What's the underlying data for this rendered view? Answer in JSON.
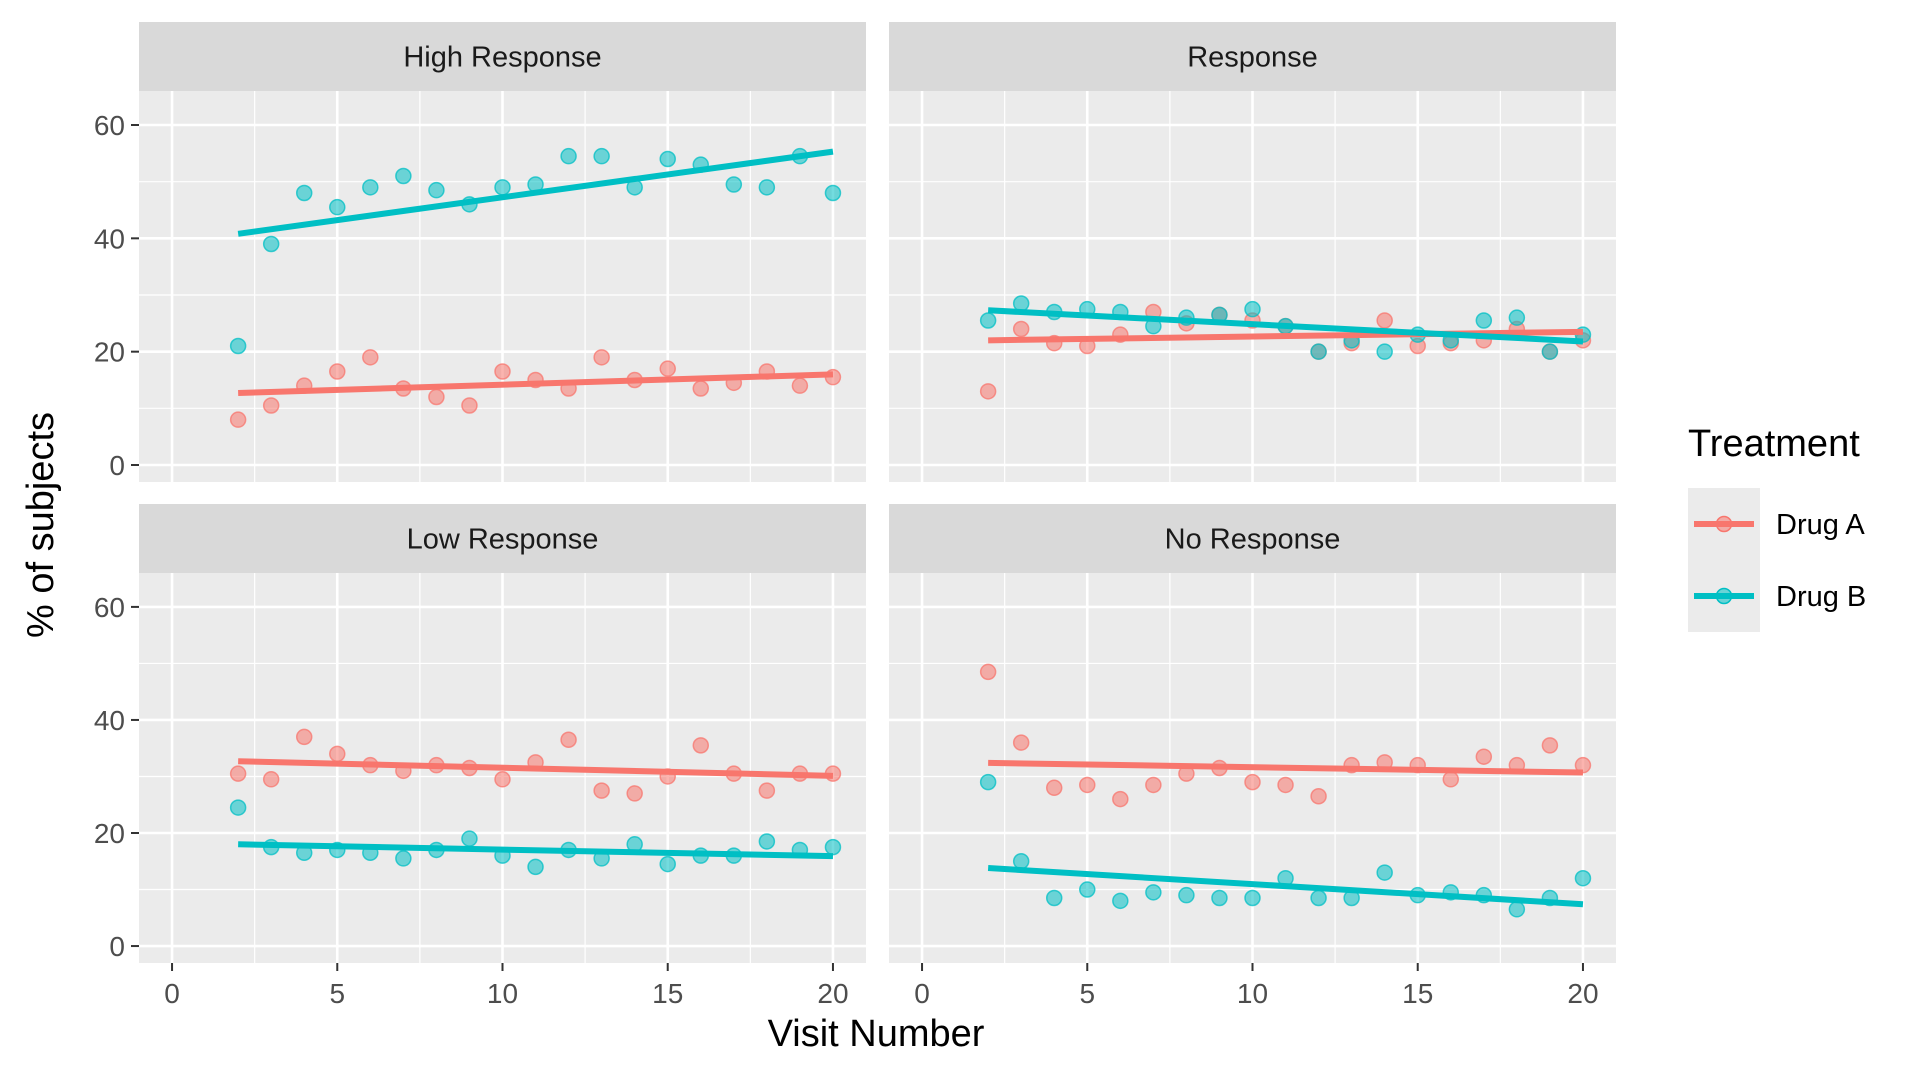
{
  "chart_data": {
    "type": "scatter",
    "subtype": "faceted scatter with linear trend lines",
    "xlabel": "Visit Number",
    "ylabel": "% of subjects",
    "xlim": [
      -1,
      21
    ],
    "ylim": [
      -3,
      66
    ],
    "x_ticks": [
      0,
      5,
      10,
      15,
      20
    ],
    "y_ticks": [
      0,
      20,
      40,
      60
    ],
    "grid": true,
    "legend": {
      "title": "Treatment",
      "position": "right",
      "entries": [
        {
          "name": "Drug A",
          "color": "#F8766D"
        },
        {
          "name": "Drug B",
          "color": "#00BFC4"
        }
      ]
    },
    "panels": [
      {
        "title": "High Response",
        "series": [
          {
            "name": "Drug A",
            "color": "#F8766D",
            "x": [
              2,
              3,
              4,
              5,
              6,
              7,
              8,
              9,
              10,
              11,
              12,
              13,
              14,
              15,
              16,
              17,
              18,
              19,
              20
            ],
            "y": [
              8,
              10.5,
              14,
              16.5,
              19,
              13.5,
              12,
              10.5,
              16.5,
              15,
              13.5,
              19,
              15,
              17,
              13.5,
              14.5,
              16.5,
              14,
              15.5
            ],
            "trend": [
              12.7,
              16.0
            ]
          },
          {
            "name": "Drug B",
            "color": "#00BFC4",
            "x": [
              2,
              3,
              4,
              5,
              6,
              7,
              8,
              9,
              10,
              11,
              12,
              13,
              14,
              15,
              16,
              17,
              18,
              19,
              20
            ],
            "y": [
              21,
              39,
              48,
              45.5,
              49,
              51,
              48.5,
              46,
              49,
              49.5,
              54.5,
              54.5,
              49,
              54,
              53,
              49.5,
              49,
              54.5,
              48
            ],
            "trend": [
              40.8,
              55.3
            ]
          }
        ]
      },
      {
        "title": "Response",
        "series": [
          {
            "name": "Drug A",
            "color": "#F8766D",
            "x": [
              2,
              3,
              4,
              5,
              6,
              7,
              8,
              9,
              10,
              11,
              12,
              13,
              14,
              15,
              16,
              17,
              18,
              19,
              20
            ],
            "y": [
              13,
              24,
              21.5,
              21,
              23,
              27,
              25,
              26.5,
              25.5,
              24.5,
              20,
              21.5,
              25.5,
              21,
              21.5,
              22,
              24,
              20,
              22
            ],
            "trend": [
              22.0,
              23.5
            ]
          },
          {
            "name": "Drug B",
            "color": "#00BFC4",
            "x": [
              2,
              3,
              4,
              5,
              6,
              7,
              8,
              9,
              10,
              11,
              12,
              13,
              14,
              15,
              16,
              17,
              18,
              19,
              20
            ],
            "y": [
              25.5,
              28.5,
              27,
              27.5,
              27,
              24.5,
              26,
              26.5,
              27.5,
              24.5,
              20,
              22,
              20,
              23,
              22,
              25.5,
              26,
              20,
              23
            ],
            "trend": [
              27.3,
              21.8
            ]
          }
        ]
      },
      {
        "title": "Low Response",
        "series": [
          {
            "name": "Drug A",
            "color": "#F8766D",
            "x": [
              2,
              3,
              4,
              5,
              6,
              7,
              8,
              9,
              10,
              11,
              12,
              13,
              14,
              15,
              16,
              17,
              18,
              19,
              20
            ],
            "y": [
              30.5,
              29.5,
              37,
              34,
              32,
              31,
              32,
              31.5,
              29.5,
              32.5,
              36.5,
              27.5,
              27,
              30,
              35.5,
              30.5,
              27.5,
              30.5,
              30.5
            ],
            "trend": [
              32.7,
              30.1
            ]
          },
          {
            "name": "Drug B",
            "color": "#00BFC4",
            "x": [
              2,
              3,
              4,
              5,
              6,
              7,
              8,
              9,
              10,
              11,
              12,
              13,
              14,
              15,
              16,
              17,
              18,
              19,
              20
            ],
            "y": [
              24.5,
              17.5,
              16.5,
              17,
              16.5,
              15.5,
              17,
              19,
              16,
              14,
              17,
              15.5,
              18,
              14.5,
              16,
              16,
              18.5,
              17,
              17.5
            ],
            "trend": [
              18.0,
              15.9
            ]
          }
        ]
      },
      {
        "title": "No Response",
        "series": [
          {
            "name": "Drug A",
            "color": "#F8766D",
            "x": [
              2,
              3,
              4,
              5,
              6,
              7,
              8,
              9,
              10,
              11,
              12,
              13,
              14,
              15,
              16,
              17,
              18,
              19,
              20
            ],
            "y": [
              48.5,
              36,
              28,
              28.5,
              26,
              28.5,
              30.5,
              31.5,
              29,
              28.5,
              26.5,
              32,
              32.5,
              32,
              29.5,
              33.5,
              32,
              35.5,
              32
            ],
            "trend": [
              32.4,
              30.7
            ]
          },
          {
            "name": "Drug B",
            "color": "#00BFC4",
            "x": [
              2,
              3,
              4,
              5,
              6,
              7,
              8,
              9,
              10,
              11,
              12,
              13,
              14,
              15,
              16,
              17,
              18,
              19,
              20
            ],
            "y": [
              29,
              15,
              8.5,
              10,
              8,
              9.5,
              9,
              8.5,
              8.5,
              12,
              8.5,
              8.5,
              13,
              9,
              9.5,
              9,
              6.5,
              8.5,
              12
            ],
            "trend": [
              13.8,
              7.4
            ]
          }
        ]
      }
    ]
  }
}
